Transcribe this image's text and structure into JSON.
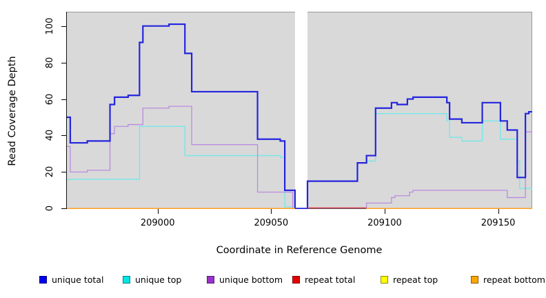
{
  "axes": {
    "x_title": "Coordinate in Reference Genome",
    "y_title": "Read Coverage Depth"
  },
  "chart_data": {
    "type": "line",
    "subtype": "step-after",
    "title": "",
    "xlabel": "Coordinate in Reference Genome",
    "ylabel": "Read Coverage Depth",
    "xlim": [
      208959.7,
      209165
    ],
    "ylim": [
      0,
      108
    ],
    "x_ticks": [
      209000,
      209050,
      209100,
      209150
    ],
    "y_ticks": [
      0,
      20,
      40,
      60,
      80,
      100
    ],
    "grid": false,
    "plot_background": "#D9D9D9",
    "box_color": "#999999",
    "gap_region": {
      "x_start": 209060.5,
      "x_end": 209066,
      "color": "#FFFFFF",
      "note": "white no-data band; only unique-total line crosses at 0"
    },
    "legend_position": "bottom",
    "series": [
      {
        "name": "unique total",
        "legend_color": "#0000EE",
        "line_color": "#2424DE",
        "line_width": 2.2,
        "z": 3,
        "segments": [
          [
            [
              208960,
              50
            ],
            [
              208961.5,
              36
            ],
            [
              208969,
              37
            ],
            [
              208979,
              57
            ],
            [
              208981,
              61
            ],
            [
              208987,
              62
            ],
            [
              208992,
              91
            ],
            [
              208993.5,
              100
            ],
            [
              209005,
              101
            ],
            [
              209012,
              85
            ],
            [
              209015,
              64
            ],
            [
              209044,
              38
            ],
            [
              209054,
              37
            ],
            [
              209056,
              10
            ],
            [
              209060.5,
              0
            ],
            [
              209066,
              15
            ],
            [
              209088,
              25
            ],
            [
              209092,
              29
            ],
            [
              209096,
              55
            ],
            [
              209103,
              58
            ],
            [
              209105.5,
              57
            ],
            [
              209110,
              60
            ],
            [
              209112.5,
              61
            ],
            [
              209127.4,
              58
            ],
            [
              209128.6,
              49
            ],
            [
              209134,
              47
            ],
            [
              209143,
              58
            ],
            [
              209151,
              48
            ],
            [
              209154,
              43
            ],
            [
              209158.4,
              17
            ],
            [
              209162,
              52
            ],
            [
              209163.5,
              53
            ],
            [
              209165,
              53
            ]
          ]
        ]
      },
      {
        "name": "unique top",
        "legend_color": "#00E5E5",
        "line_color": "#76E7E9",
        "line_width": 1.4,
        "z": 1,
        "segments": [
          [
            [
              208960,
              16
            ],
            [
              208992,
              45
            ],
            [
              209012,
              29
            ],
            [
              209054,
              28
            ],
            [
              209056,
              1
            ],
            [
              209059.5,
              0
            ]
          ],
          [
            [
              209066,
              0
            ],
            [
              209066,
              15
            ],
            [
              209088,
              25
            ],
            [
              209092,
              26
            ],
            [
              209096,
              52
            ],
            [
              209127.4,
              48
            ],
            [
              209128.6,
              39
            ],
            [
              209134,
              37
            ],
            [
              209143,
              48
            ],
            [
              209151,
              38
            ],
            [
              209158.4,
              26
            ],
            [
              209159.5,
              11
            ],
            [
              209165,
              11
            ]
          ]
        ]
      },
      {
        "name": "unique bottom",
        "legend_color": "#9932CC",
        "line_color": "#BA8ADF",
        "line_width": 1.3,
        "z": 2,
        "segments": [
          [
            [
              208960,
              34
            ],
            [
              208961.5,
              20
            ],
            [
              208969,
              21
            ],
            [
              208979,
              41
            ],
            [
              208981,
              45
            ],
            [
              208987,
              46
            ],
            [
              208993.5,
              55
            ],
            [
              209005,
              56
            ],
            [
              209015,
              35
            ],
            [
              209044,
              9
            ],
            [
              209059.5,
              0
            ]
          ],
          [
            [
              209092,
              0
            ],
            [
              209092,
              3
            ],
            [
              209103,
              6
            ],
            [
              209104.5,
              7
            ],
            [
              209111,
              9
            ],
            [
              209112.5,
              10
            ],
            [
              209154,
              6
            ],
            [
              209162,
              42
            ],
            [
              209165,
              42
            ]
          ]
        ]
      },
      {
        "name": "repeat total",
        "legend_color": "#E50000",
        "line_color": "#D9485E",
        "line_width": 1.5,
        "z": 4,
        "segments": [
          [
            [
              208960,
              0
            ],
            [
              209060.5,
              0
            ]
          ],
          [
            [
              209066,
              0.35
            ],
            [
              209092,
              0.35
            ]
          ],
          [
            [
              209092,
              0
            ],
            [
              209165,
              0
            ]
          ]
        ]
      },
      {
        "name": "repeat top",
        "legend_color": "#FFFF00",
        "line_color": "#FFFF00",
        "line_width": 1.4,
        "z": 5,
        "segments": [
          [
            [
              208960,
              0
            ],
            [
              209060.5,
              0
            ]
          ],
          [
            [
              209092,
              0
            ],
            [
              209165,
              0
            ]
          ]
        ]
      },
      {
        "name": "repeat bottom",
        "legend_color": "#FFA500",
        "line_color": "#FFA022",
        "line_width": 1.7,
        "z": 6,
        "segments": [
          [
            [
              208960,
              0
            ],
            [
              209060.5,
              0
            ]
          ],
          [
            [
              209092,
              0
            ],
            [
              209165,
              0
            ]
          ]
        ]
      }
    ]
  },
  "legend": {
    "items": [
      {
        "label": "unique total",
        "color": "#0000EE"
      },
      {
        "label": "unique top",
        "color": "#00E5E5"
      },
      {
        "label": "unique bottom",
        "color": "#9932CC"
      },
      {
        "label": "repeat total",
        "color": "#E50000"
      },
      {
        "label": "repeat top",
        "color": "#FFFF00"
      },
      {
        "label": "repeat bottom",
        "color": "#FFA500"
      }
    ]
  }
}
